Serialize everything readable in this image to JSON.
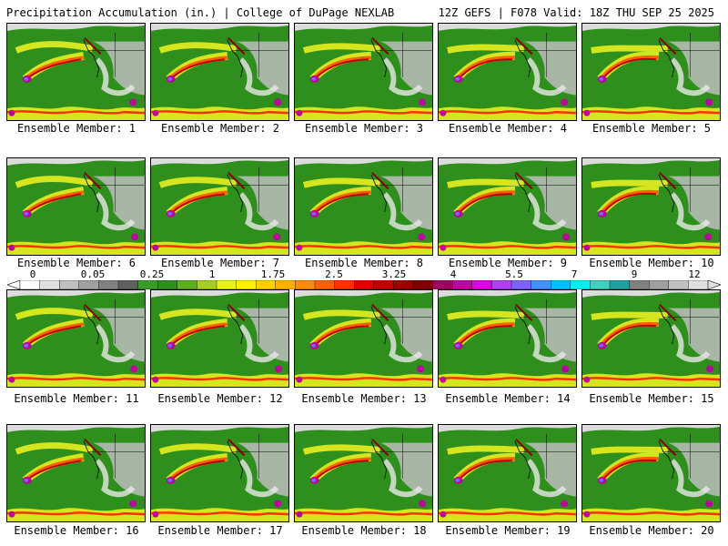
{
  "header": {
    "title": "Precipitation Accumulation (in.) | College of DuPage NEXLAB",
    "run_info": "12Z GEFS | F078 Valid: 18Z THU SEP 25 2025"
  },
  "panels": [
    {
      "label": "Ensemble Member: 1"
    },
    {
      "label": "Ensemble Member: 2"
    },
    {
      "label": "Ensemble Member: 3"
    },
    {
      "label": "Ensemble Member: 4"
    },
    {
      "label": "Ensemble Member: 5"
    },
    {
      "label": "Ensemble Member: 6"
    },
    {
      "label": "Ensemble Member: 7"
    },
    {
      "label": "Ensemble Member: 8"
    },
    {
      "label": "Ensemble Member: 9"
    },
    {
      "label": "Ensemble Member: 10"
    },
    {
      "label": "Ensemble Member: 11"
    },
    {
      "label": "Ensemble Member: 12"
    },
    {
      "label": "Ensemble Member: 13"
    },
    {
      "label": "Ensemble Member: 14"
    },
    {
      "label": "Ensemble Member: 15"
    },
    {
      "label": "Ensemble Member: 16"
    },
    {
      "label": "Ensemble Member: 17"
    },
    {
      "label": "Ensemble Member: 18"
    },
    {
      "label": "Ensemble Member: 19"
    },
    {
      "label": "Ensemble Member: 20"
    }
  ],
  "colorbar": {
    "labels": [
      "0",
      "0.05",
      "0.25",
      "1",
      "1.75",
      "2.5",
      "3.25",
      "4",
      "5.5",
      "7",
      "9",
      "12"
    ],
    "colors": [
      "#ffffff",
      "#e0e0e0",
      "#c0c0c0",
      "#a0a0a0",
      "#808080",
      "#606060",
      "#3a9a2a",
      "#2f8f1c",
      "#5fae1e",
      "#a8d020",
      "#e8f020",
      "#fff000",
      "#ffd000",
      "#ffb000",
      "#ff8c00",
      "#ff6000",
      "#ff3000",
      "#e00000",
      "#c00000",
      "#a00000",
      "#800000",
      "#a00060",
      "#c000a0",
      "#e000e0",
      "#b040f0",
      "#8060ff",
      "#4090ff",
      "#00c0ff",
      "#00f0f0",
      "#40d0c0",
      "#20a0a0",
      "#808080",
      "#a0a0a0",
      "#c0c0c0",
      "#e0e0e0"
    ]
  }
}
